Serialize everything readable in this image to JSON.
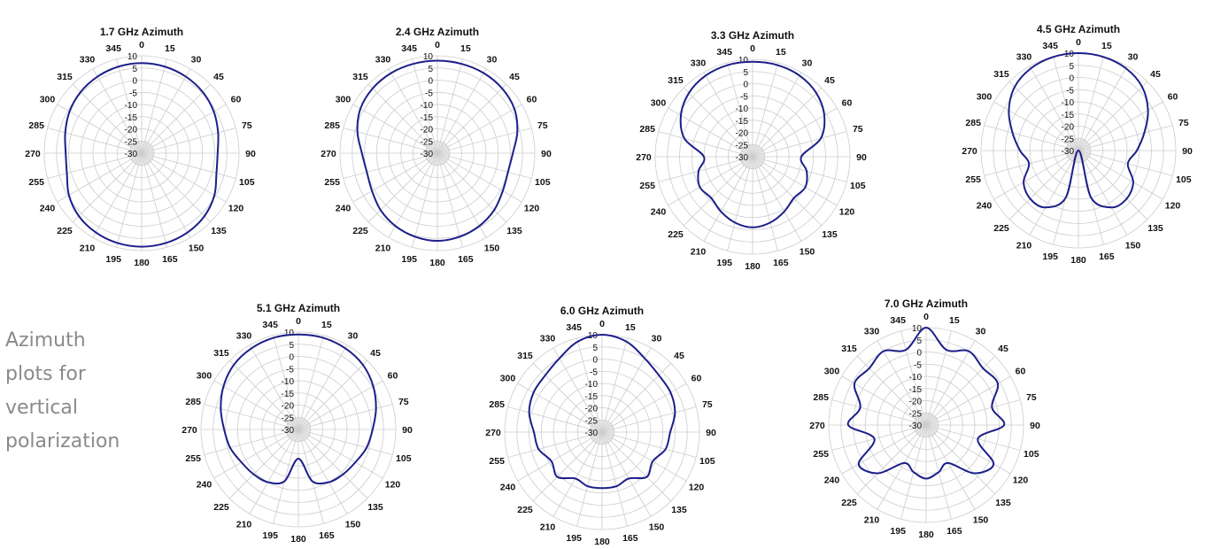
{
  "caption": [
    "Azimuth",
    "plots for",
    "vertical",
    "polarization"
  ],
  "colors": {
    "pattern": "#1c1f8a",
    "grid": "#cccccc",
    "label": "#111111",
    "caption": "#8a8a8a"
  },
  "chart_data": [
    {
      "type": "polar-line",
      "title": "1.7 GHz Azimuth",
      "radial_ticks": [
        "10",
        "5",
        "0",
        "-5",
        "-10",
        "-15",
        "-20",
        "-25",
        "-30"
      ],
      "rlim": [
        -30,
        10
      ],
      "angle_ticks": [
        "0",
        "15",
        "30",
        "45",
        "60",
        "75",
        "90",
        "105",
        "120",
        "135",
        "150",
        "165",
        "180",
        "195",
        "210",
        "225",
        "240",
        "255",
        "270",
        "285",
        "300",
        "315",
        "330",
        "345"
      ],
      "series": [
        {
          "angles": [
            0,
            15,
            30,
            45,
            60,
            75,
            90,
            105,
            120,
            135,
            150,
            165,
            180,
            195,
            210,
            225,
            240,
            255,
            270,
            285,
            300,
            315,
            330,
            345
          ],
          "values": [
            7,
            6.8,
            6.3,
            5.5,
            4.2,
            2.5,
            1.2,
            1.8,
            4.5,
            6.5,
            7.6,
            8.2,
            8.4,
            8.2,
            7.6,
            6.5,
            4.5,
            1.8,
            1.2,
            2.5,
            4.2,
            5.5,
            6.3,
            6.8
          ]
        }
      ]
    },
    {
      "type": "polar-line",
      "title": "2.4 GHz Azimuth",
      "radial_ticks": [
        "10",
        "5",
        "0",
        "-5",
        "-10",
        "-15",
        "-20",
        "-25",
        "-30"
      ],
      "rlim": [
        -30,
        10
      ],
      "angle_ticks": [
        "0",
        "15",
        "30",
        "45",
        "60",
        "75",
        "90",
        "105",
        "120",
        "135",
        "150",
        "165",
        "180",
        "195",
        "210",
        "225",
        "240",
        "255",
        "270",
        "285",
        "300",
        "315",
        "330",
        "345"
      ],
      "series": [
        {
          "angles": [
            0,
            15,
            30,
            45,
            60,
            75,
            90,
            105,
            120,
            135,
            150,
            165,
            180,
            195,
            210,
            225,
            240,
            255,
            270,
            285,
            300,
            315,
            330,
            345
          ],
          "values": [
            8,
            8,
            8,
            7.6,
            6.5,
            4,
            1,
            0,
            1,
            3,
            4.5,
            5.5,
            6,
            5.5,
            4.5,
            3,
            1,
            0,
            1,
            4,
            6.5,
            7.6,
            8,
            8
          ]
        }
      ]
    },
    {
      "type": "polar-line",
      "title": "3.3 GHz Azimuth",
      "radial_ticks": [
        "10",
        "5",
        "0",
        "-5",
        "-10",
        "-15",
        "-20",
        "-25",
        "-30"
      ],
      "rlim": [
        -30,
        10
      ],
      "angle_ticks": [
        "0",
        "15",
        "30",
        "45",
        "60",
        "75",
        "90",
        "105",
        "120",
        "135",
        "150",
        "165",
        "180",
        "195",
        "210",
        "225",
        "240",
        "255",
        "270",
        "285",
        "300",
        "315",
        "330",
        "345"
      ],
      "series": [
        {
          "angles": [
            0,
            15,
            30,
            45,
            60,
            75,
            90,
            105,
            120,
            135,
            150,
            165,
            180,
            195,
            210,
            225,
            240,
            255,
            270,
            285,
            300,
            315,
            330,
            345
          ],
          "values": [
            9,
            9,
            8.5,
            7,
            4,
            -1,
            -10,
            -7,
            -5,
            -6,
            -4,
            -2,
            -1,
            -2,
            -4,
            -6,
            -5,
            -7,
            -10,
            -1,
            4,
            7,
            8.5,
            9
          ]
        }
      ]
    },
    {
      "type": "polar-line",
      "title": "4.5 GHz Azimuth",
      "radial_ticks": [
        "10",
        "5",
        "0",
        "-5",
        "-10",
        "-15",
        "-20",
        "-25",
        "-30"
      ],
      "rlim": [
        -30,
        10
      ],
      "angle_ticks": [
        "0",
        "15",
        "30",
        "45",
        "60",
        "75",
        "90",
        "105",
        "120",
        "135",
        "150",
        "165",
        "180",
        "195",
        "210",
        "225",
        "240",
        "255",
        "270",
        "285",
        "300",
        "315",
        "330",
        "345"
      ],
      "series": [
        {
          "angles": [
            0,
            15,
            30,
            45,
            60,
            75,
            90,
            105,
            120,
            135,
            150,
            165,
            180,
            195,
            210,
            225,
            240,
            255,
            270,
            285,
            300,
            315,
            330,
            345
          ],
          "values": [
            10,
            9.8,
            9,
            7,
            3,
            -2,
            -6,
            -9,
            -4,
            -2,
            -3,
            -10,
            -30,
            -10,
            -3,
            -2,
            -4,
            -9,
            -6,
            -2,
            3,
            7,
            9,
            9.8
          ]
        }
      ]
    },
    {
      "type": "polar-line",
      "title": "5.1 GHz Azimuth",
      "radial_ticks": [
        "10",
        "5",
        "0",
        "-5",
        "-10",
        "-15",
        "-20",
        "-25",
        "-30"
      ],
      "rlim": [
        -30,
        10
      ],
      "angle_ticks": [
        "0",
        "15",
        "30",
        "45",
        "60",
        "75",
        "90",
        "105",
        "120",
        "135",
        "150",
        "165",
        "180",
        "195",
        "210",
        "225",
        "240",
        "255",
        "270",
        "285",
        "300",
        "315",
        "330",
        "345"
      ],
      "series": [
        {
          "angles": [
            0,
            15,
            30,
            45,
            60,
            75,
            90,
            105,
            120,
            135,
            150,
            165,
            180,
            195,
            210,
            225,
            240,
            255,
            270,
            285,
            300,
            315,
            330,
            345
          ],
          "values": [
            9,
            9,
            8.5,
            7.5,
            5.5,
            3,
            0.5,
            -1,
            -3,
            -4,
            -5,
            -8,
            -18,
            -8,
            -5,
            -4,
            -3,
            -1,
            0.5,
            3,
            5.5,
            7.5,
            8.5,
            9
          ]
        }
      ]
    },
    {
      "type": "polar-line",
      "title": "6.0 GHz Azimuth",
      "radial_ticks": [
        "10",
        "5",
        "0",
        "-5",
        "-10",
        "-15",
        "-20",
        "-25",
        "-30"
      ],
      "rlim": [
        -30,
        10
      ],
      "angle_ticks": [
        "0",
        "15",
        "30",
        "45",
        "60",
        "75",
        "90",
        "105",
        "120",
        "135",
        "150",
        "165",
        "180",
        "195",
        "210",
        "225",
        "240",
        "255",
        "270",
        "285",
        "300",
        "315",
        "330",
        "345"
      ],
      "series": [
        {
          "angles": [
            0,
            15,
            30,
            45,
            60,
            75,
            90,
            105,
            120,
            135,
            150,
            165,
            180,
            195,
            210,
            225,
            240,
            255,
            270,
            285,
            300,
            315,
            330,
            345
          ],
          "values": [
            10,
            8.5,
            5,
            3,
            2.5,
            1,
            -2,
            -3,
            -6,
            -4,
            -8,
            -7,
            -7,
            -7,
            -8,
            -4,
            -6,
            -3,
            -2,
            1,
            2.5,
            3,
            5,
            8.5
          ]
        }
      ]
    },
    {
      "type": "polar-line",
      "title": "7.0 GHz Azimuth",
      "radial_ticks": [
        "10",
        "5",
        "0",
        "-5",
        "-10",
        "-15",
        "-20",
        "-25",
        "-30"
      ],
      "rlim": [
        -30,
        10
      ],
      "angle_ticks": [
        "0",
        "15",
        "30",
        "45",
        "60",
        "75",
        "90",
        "105",
        "120",
        "135",
        "150",
        "165",
        "180",
        "195",
        "210",
        "225",
        "240",
        "255",
        "270",
        "285",
        "300",
        "315",
        "330",
        "345"
      ],
      "series": [
        {
          "angles": [
            0,
            15,
            30,
            45,
            60,
            75,
            90,
            105,
            120,
            135,
            150,
            165,
            180,
            195,
            210,
            225,
            240,
            255,
            270,
            285,
            300,
            315,
            330,
            345
          ],
          "values": [
            10,
            2,
            5,
            3,
            4,
            -2,
            2,
            -8,
            2,
            -2,
            -12,
            -10,
            -8,
            -10,
            -12,
            -2,
            2,
            -8,
            2,
            -2,
            4,
            3,
            5,
            2
          ]
        }
      ]
    }
  ]
}
